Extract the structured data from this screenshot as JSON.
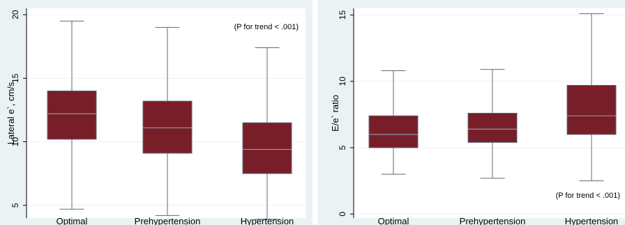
{
  "chart_data": [
    {
      "type": "box",
      "title": "",
      "xlabel": "",
      "ylabel": "Lateral e`, cm/s",
      "ylim": [
        4,
        20.5
      ],
      "yticks": [
        5,
        10,
        15,
        20
      ],
      "ytick_labels": [
        "5",
        "10",
        "15",
        "20"
      ],
      "grid": true,
      "annotation": "(P for trend < .001)",
      "annotation_placement": "top-right",
      "categories": [
        "Optimal",
        "Prehypertension",
        "Hypertension"
      ],
      "boxes": [
        {
          "min": 4.7,
          "q1": 10.2,
          "median": 12.2,
          "q3": 14.0,
          "max": 19.5
        },
        {
          "min": 4.2,
          "q1": 9.1,
          "median": 11.1,
          "q3": 13.2,
          "max": 19.0
        },
        {
          "min": 3.9,
          "q1": 7.5,
          "median": 9.4,
          "q3": 11.5,
          "max": 17.4
        }
      ],
      "colors": {
        "box_fill": "#781e28",
        "box_outline": "#5f6a7a",
        "median": "#8a95a5"
      }
    },
    {
      "type": "box",
      "title": "",
      "xlabel": "",
      "ylabel": "E/e` ratio",
      "ylim": [
        -0.3,
        15.5
      ],
      "yticks": [
        0,
        5,
        10,
        15
      ],
      "ytick_labels": [
        "0",
        "5",
        "10",
        "15"
      ],
      "grid": true,
      "annotation": "(P for trend < .001)",
      "annotation_placement": "bottom-right",
      "categories": [
        "Optimal",
        "Prehypertension",
        "Hypertension"
      ],
      "boxes": [
        {
          "min": 3.0,
          "q1": 5.0,
          "median": 6.0,
          "q3": 7.4,
          "max": 10.8
        },
        {
          "min": 2.7,
          "q1": 5.4,
          "median": 6.4,
          "q3": 7.6,
          "max": 10.9
        },
        {
          "min": 2.5,
          "q1": 6.0,
          "median": 7.4,
          "q3": 9.7,
          "max": 15.1
        }
      ],
      "colors": {
        "box_fill": "#781e28",
        "box_outline": "#5f6a7a",
        "median": "#8a95a5"
      }
    }
  ]
}
